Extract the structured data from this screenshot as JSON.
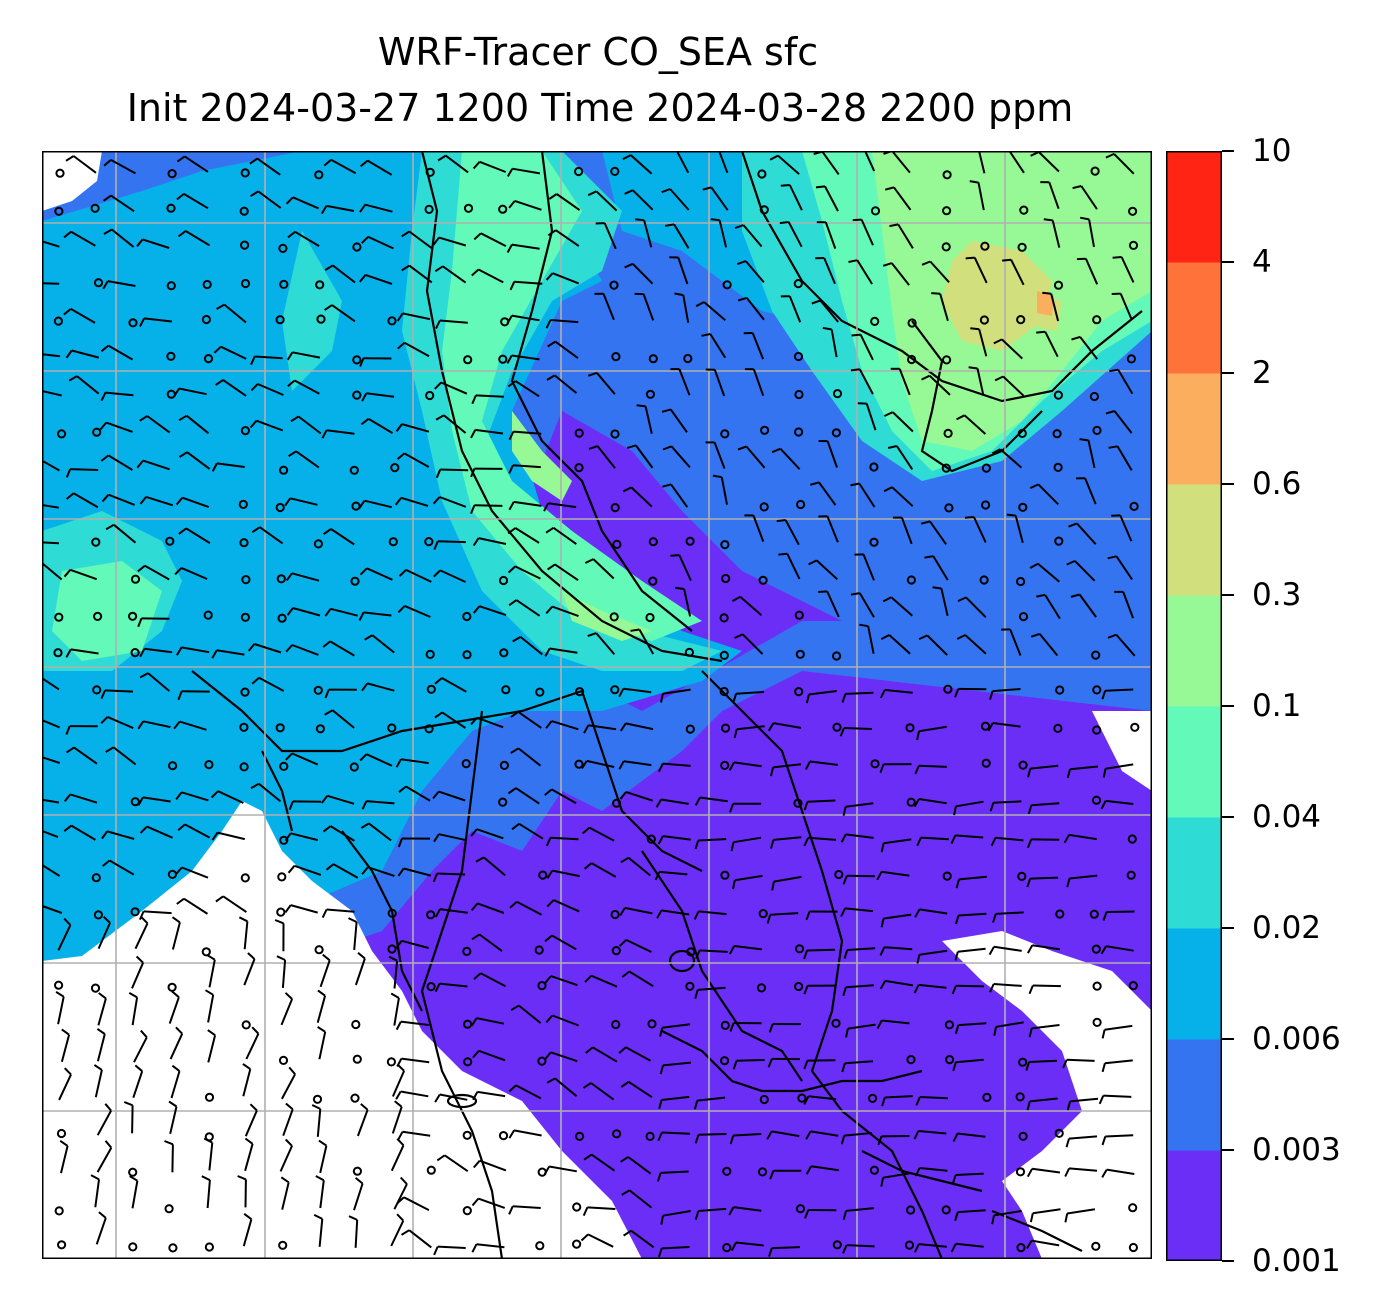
{
  "title": {
    "line1": "WRF-Tracer CO_SEA sfc",
    "line2": "Init 2024-03-27 1200 Time 2024-03-28 2200 ppm"
  },
  "colorbar": {
    "levels": [
      "0.001",
      "0.003",
      "0.006",
      "0.02",
      "0.04",
      "0.1",
      "0.3",
      "0.6",
      "2",
      "4",
      "10"
    ],
    "colors": [
      "#6a2ef7",
      "#3574f0",
      "#06b1ea",
      "#2fdcd5",
      "#62f9b9",
      "#96f995",
      "#d1e07c",
      "#fbaf5e",
      "#ff733a",
      "#ff2414"
    ]
  },
  "map_colors": {
    "missing": "#ffffff",
    "grid": "#b0b0b0",
    "coast": "#000000",
    "wind": "#000000"
  }
}
